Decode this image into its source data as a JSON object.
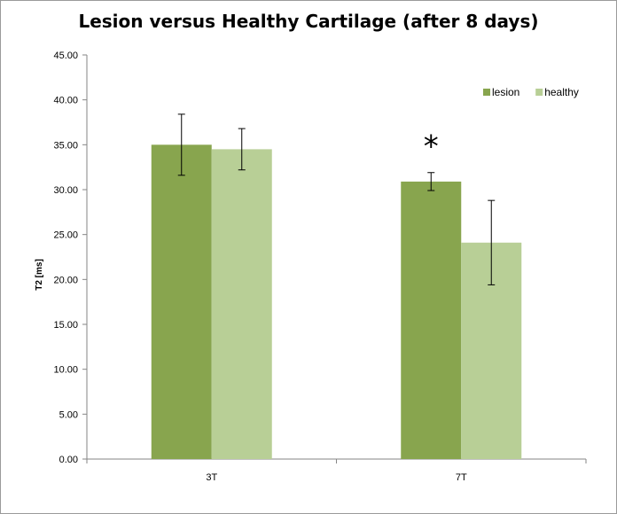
{
  "chart_data": {
    "type": "bar",
    "title": "Lesion versus Healthy Cartilage (after 8 days)",
    "xlabel": "",
    "ylabel": "T2 [ms]",
    "ylim": [
      0,
      45
    ],
    "yticks": [
      "0.00",
      "5.00",
      "10.00",
      "15.00",
      "20.00",
      "25.00",
      "30.00",
      "35.00",
      "40.00",
      "45.00"
    ],
    "categories": [
      "3T",
      "7T"
    ],
    "series": [
      {
        "name": "lesion",
        "color": "#88a54e",
        "values": [
          35.0,
          30.9
        ],
        "errors": [
          3.4,
          1.0
        ]
      },
      {
        "name": "healthy",
        "color": "#b8cf96",
        "values": [
          34.5,
          24.1
        ],
        "errors": [
          2.3,
          4.7
        ]
      }
    ],
    "legend_position": "top-right",
    "annotations": [
      {
        "text": "*",
        "category": "7T"
      }
    ]
  }
}
